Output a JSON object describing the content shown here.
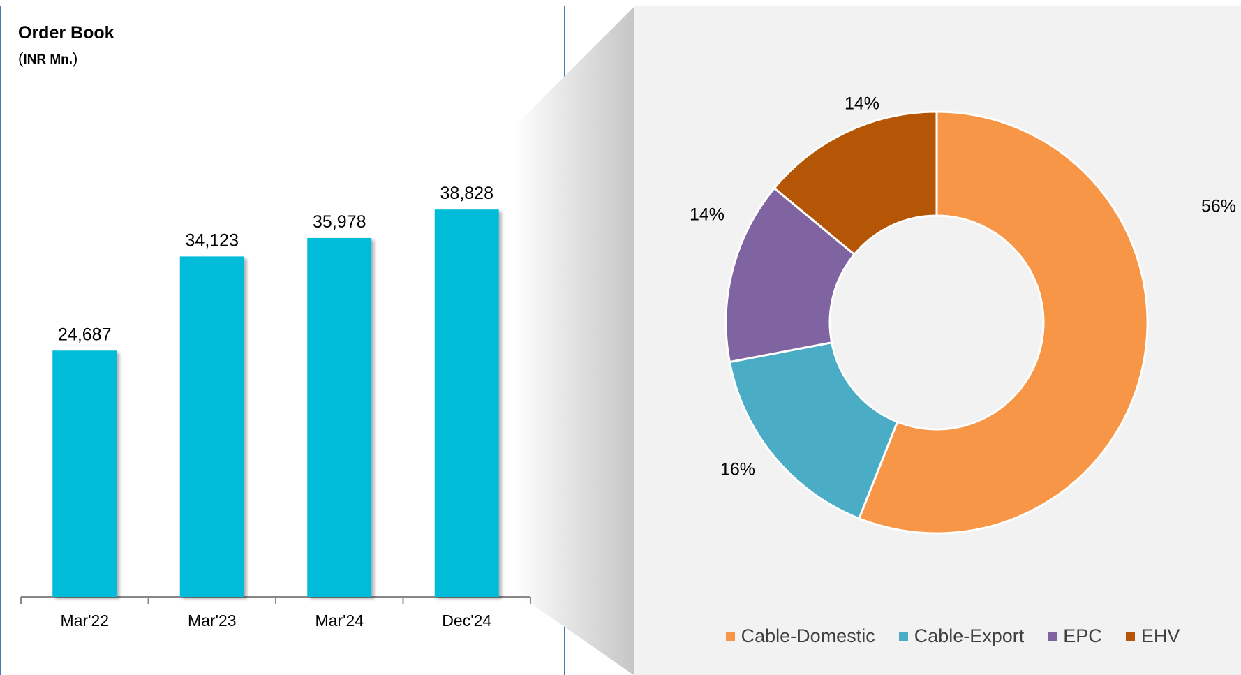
{
  "chart_data": [
    {
      "type": "bar",
      "title": "Order Book",
      "subtitle": "INR Mn.",
      "categories": [
        "Mar'22",
        "Mar'23",
        "Mar'24",
        "Dec'24"
      ],
      "values": [
        24687,
        34123,
        35978,
        38828
      ],
      "value_labels": [
        "24,687",
        "34,123",
        "35,978",
        "38,828"
      ],
      "ylim": [
        0,
        45000
      ],
      "color": "#00bcd8",
      "grid": false
    },
    {
      "type": "pie",
      "style": "donut",
      "labels": [
        "Cable-Domestic",
        "Cable-Export",
        "EPC",
        "EHV"
      ],
      "values": [
        56,
        16,
        14,
        14
      ],
      "value_labels": [
        "56%",
        "16%",
        "14%",
        "14%"
      ],
      "colors": [
        "#f79646",
        "#4bacc6",
        "#8064a2",
        "#b55607"
      ],
      "legend_position": "bottom"
    }
  ]
}
